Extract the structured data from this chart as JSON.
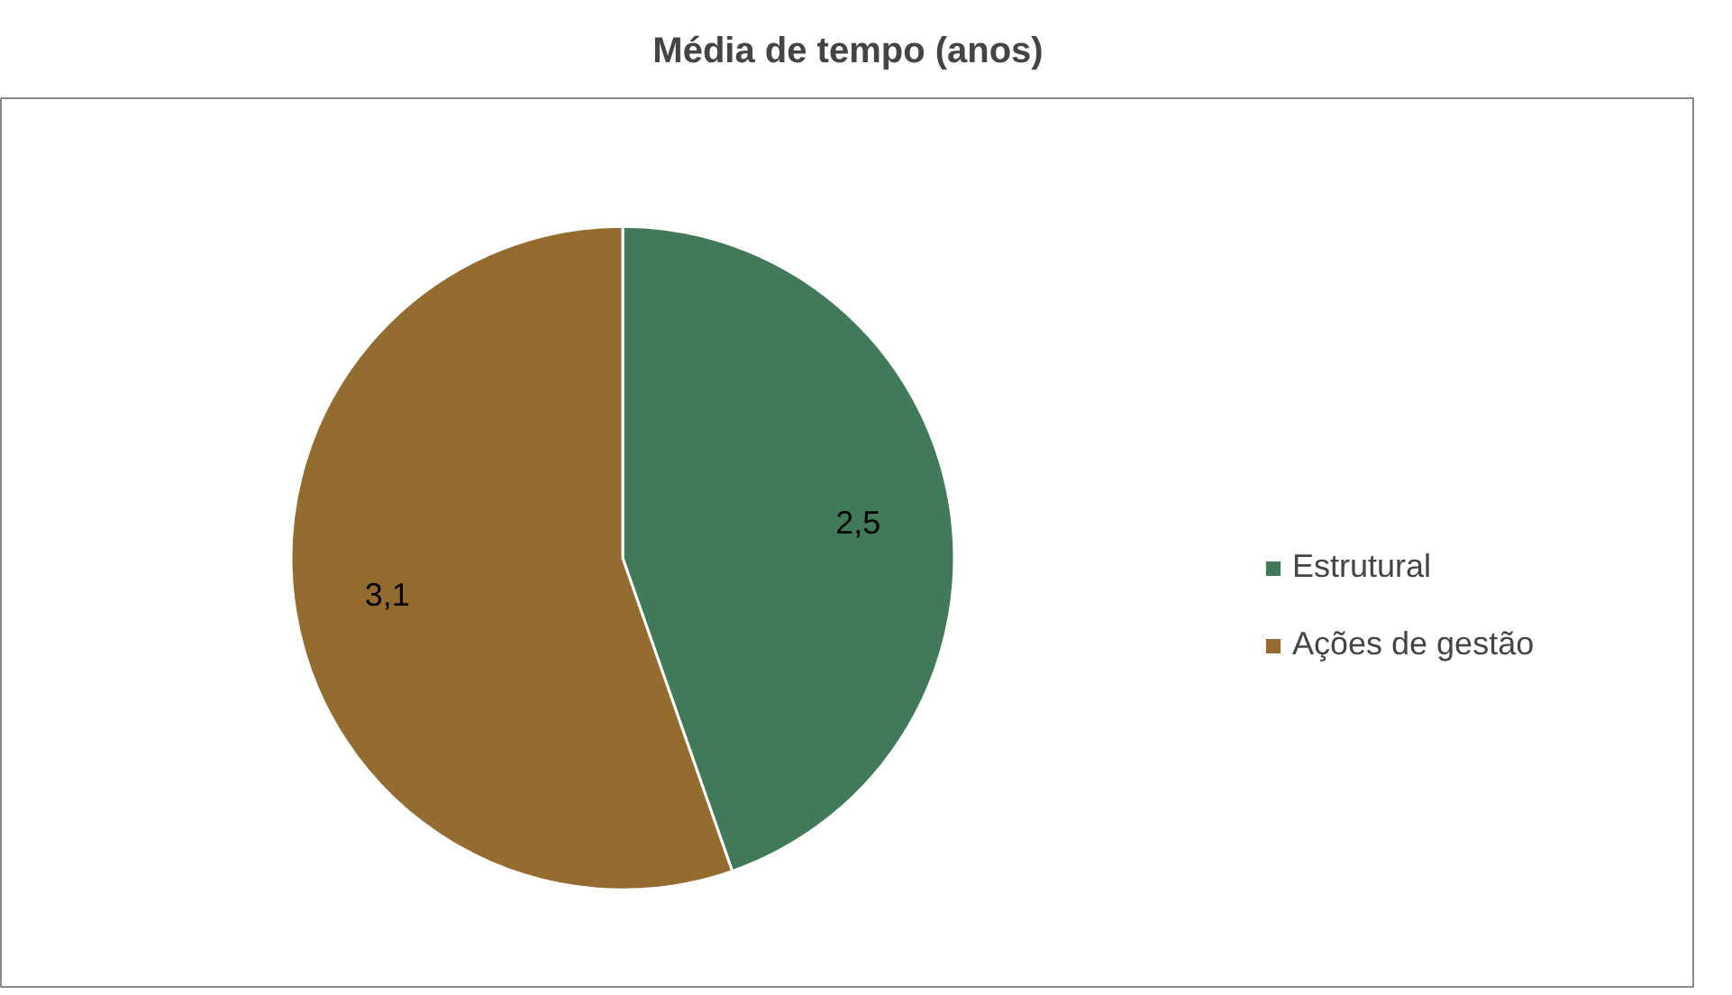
{
  "chart_data": {
    "type": "pie",
    "title": "Média de tempo (anos)",
    "categories": [
      "Estrutural",
      "Ações de gestão"
    ],
    "values": [
      2.5,
      3.1
    ],
    "colors": [
      "#417a58",
      "#956c2f"
    ],
    "value_labels": [
      "2,5",
      "3,1"
    ],
    "legend": "right"
  }
}
